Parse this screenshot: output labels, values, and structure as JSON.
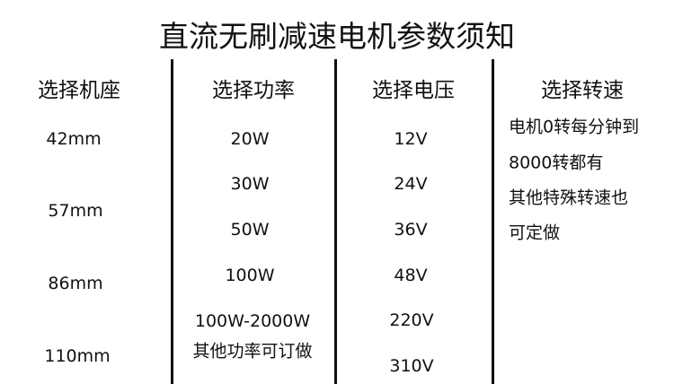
{
  "title": "直流无刷减速电机参数须知",
  "columns": [
    {
      "header": "选择机座",
      "values": [
        "42mm",
        "57mm",
        "86mm",
        "110mm"
      ]
    },
    {
      "header": "选择功率",
      "values": [
        "20W",
        "30W",
        "50W",
        "100W",
        "100W-2000W",
        "其他功率可订做"
      ]
    },
    {
      "header": "选择电压",
      "values": [
        "12V",
        "24V",
        "36V",
        "48V",
        "220V",
        "310V"
      ]
    },
    {
      "header": "选择转速",
      "values": [
        "电机0转每分钟到",
        "8000转都有",
        "其他特殊转速也",
        "可定做"
      ]
    }
  ]
}
